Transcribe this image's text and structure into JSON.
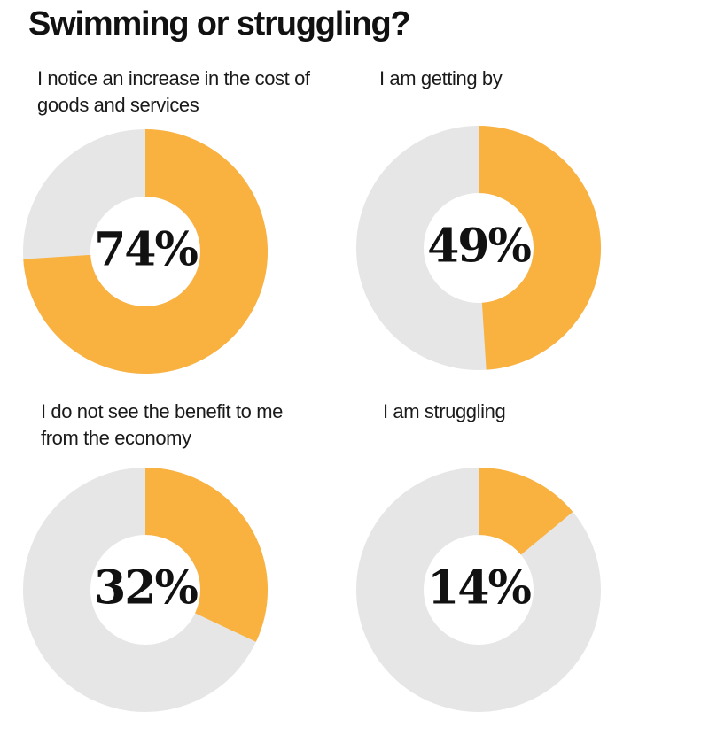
{
  "page": {
    "title": "Swimming or struggling?"
  },
  "colors": {
    "accent": "#F9B13F",
    "track": "#E6E6E6",
    "text": "#111111",
    "background": "#FFFFFF"
  },
  "chart_data": [
    {
      "type": "pie",
      "variant": "donut",
      "title": "I notice an increase in the cost of goods and services",
      "label_lines": [
        "I notice an increase in the cost of",
        "goods and services"
      ],
      "value": 74,
      "value_label": "74%",
      "max": 100
    },
    {
      "type": "pie",
      "variant": "donut",
      "title": "I am getting by",
      "label_lines": [
        "I am getting by"
      ],
      "value": 49,
      "value_label": "49%",
      "max": 100
    },
    {
      "type": "pie",
      "variant": "donut",
      "title": "I do not see the benefit to me from the economy",
      "label_lines": [
        "I do  not see the benefit to me",
        "from the economy"
      ],
      "value": 32,
      "value_label": "32%",
      "max": 100
    },
    {
      "type": "pie",
      "variant": "donut",
      "title": "I am struggling",
      "label_lines": [
        "I am struggling"
      ],
      "value": 14,
      "value_label": "14%",
      "max": 100
    }
  ]
}
